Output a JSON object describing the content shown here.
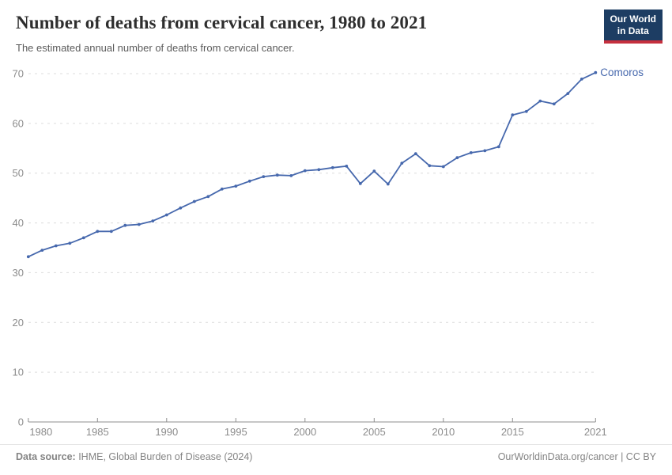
{
  "header": {
    "title": "Number of deaths from cervical cancer, 1980 to 2021",
    "subtitle": "The estimated annual number of deaths from cervical cancer.",
    "logo": {
      "line1": "Our World",
      "line2": "in Data",
      "bg_color": "#1d3d63",
      "accent_color": "#c5303e"
    }
  },
  "chart_data": {
    "type": "line",
    "title": "Number of deaths from cervical cancer, 1980 to 2021",
    "xlabel": "",
    "ylabel": "",
    "ylim": [
      0,
      70
    ],
    "yticks": [
      0,
      10,
      20,
      30,
      40,
      50,
      60,
      70
    ],
    "xticks": [
      1980,
      1985,
      1990,
      1995,
      2000,
      2005,
      2010,
      2015,
      2021
    ],
    "grid": "horizontal-dashed",
    "legend_position": "end-of-line-label",
    "end_label": "Comoros",
    "series": [
      {
        "name": "Comoros",
        "color": "#4668ad",
        "x": [
          1980,
          1981,
          1982,
          1983,
          1984,
          1985,
          1986,
          1987,
          1988,
          1989,
          1990,
          1991,
          1992,
          1993,
          1994,
          1995,
          1996,
          1997,
          1998,
          1999,
          2000,
          2001,
          2002,
          2003,
          2004,
          2005,
          2006,
          2007,
          2008,
          2009,
          2010,
          2011,
          2012,
          2013,
          2014,
          2015,
          2016,
          2017,
          2018,
          2019,
          2020,
          2021
        ],
        "values": [
          33.2,
          34.5,
          35.4,
          35.9,
          37.0,
          38.3,
          38.3,
          39.5,
          39.7,
          40.4,
          41.6,
          43.0,
          44.3,
          45.3,
          46.8,
          47.4,
          48.4,
          49.3,
          49.6,
          49.5,
          50.5,
          50.7,
          51.1,
          51.4,
          47.9,
          50.4,
          47.8,
          52.0,
          53.9,
          51.5,
          51.3,
          53.1,
          54.1,
          54.5,
          55.3,
          61.7,
          62.4,
          64.5,
          63.9,
          66.0,
          68.9,
          70.2
        ]
      }
    ],
    "colors": {
      "gridline": "#dcdcdc",
      "axis_line": "#8f8f8f",
      "tick_label": "#8c8c8c"
    }
  },
  "footer": {
    "source_label": "Data source:",
    "source_text": " IHME, Global Burden of Disease (2024)",
    "link_text": "OurWorldinData.org/cancer | CC BY"
  }
}
